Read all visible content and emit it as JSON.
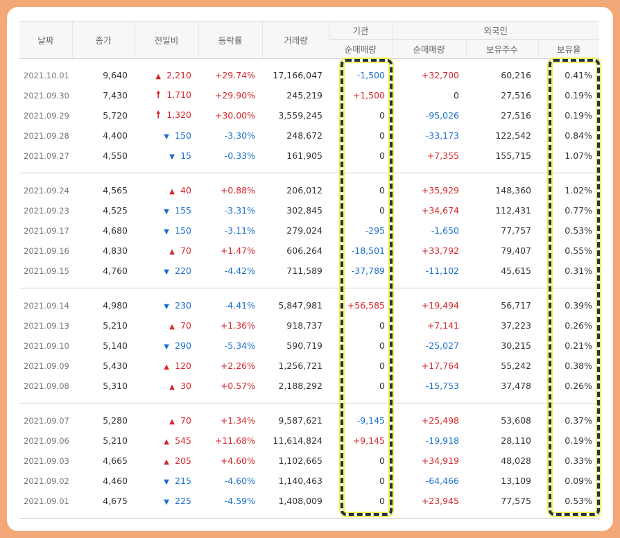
{
  "headers": {
    "date": "날짜",
    "close": "종가",
    "change": "전일비",
    "rate": "등락률",
    "volume": "거래량",
    "institution": "기관",
    "inst_net": "순매매량",
    "foreign": "외국인",
    "foreign_net": "순매매량",
    "foreign_shares": "보유주수",
    "foreign_ratio": "보유율"
  },
  "colors": {
    "up": "#d6262b",
    "down": "#1a6fd0",
    "highlight_border": "#213349",
    "highlight_glow": "#f6f34a"
  },
  "groups": [
    [
      {
        "date": "2021.10.01",
        "close": "9,640",
        "dir": "up",
        "arrow": "▲",
        "chg": "2,210",
        "rate": "+29.74%",
        "vol": "17,166,047",
        "inst": "-1,500",
        "frn": "+32,700",
        "shares": "60,216",
        "ratio": "0.41%"
      },
      {
        "date": "2021.09.30",
        "close": "7,430",
        "dir": "up",
        "arrow": "🠕",
        "chg": "1,710",
        "rate": "+29.90%",
        "vol": "245,219",
        "inst": "+1,500",
        "frn": "0",
        "shares": "27,516",
        "ratio": "0.19%"
      },
      {
        "date": "2021.09.29",
        "close": "5,720",
        "dir": "up",
        "arrow": "🠕",
        "chg": "1,320",
        "rate": "+30.00%",
        "vol": "3,559,245",
        "inst": "0",
        "frn": "-95,026",
        "shares": "27,516",
        "ratio": "0.19%"
      },
      {
        "date": "2021.09.28",
        "close": "4,400",
        "dir": "down",
        "arrow": "▼",
        "chg": "150",
        "rate": "-3.30%",
        "vol": "248,672",
        "inst": "0",
        "frn": "-33,173",
        "shares": "122,542",
        "ratio": "0.84%"
      },
      {
        "date": "2021.09.27",
        "close": "4,550",
        "dir": "down",
        "arrow": "▼",
        "chg": "15",
        "rate": "-0.33%",
        "vol": "161,905",
        "inst": "0",
        "frn": "+7,355",
        "shares": "155,715",
        "ratio": "1.07%"
      }
    ],
    [
      {
        "date": "2021.09.24",
        "close": "4,565",
        "dir": "up",
        "arrow": "▲",
        "chg": "40",
        "rate": "+0.88%",
        "vol": "206,012",
        "inst": "0",
        "frn": "+35,929",
        "shares": "148,360",
        "ratio": "1.02%"
      },
      {
        "date": "2021.09.23",
        "close": "4,525",
        "dir": "down",
        "arrow": "▼",
        "chg": "155",
        "rate": "-3.31%",
        "vol": "302,845",
        "inst": "0",
        "frn": "+34,674",
        "shares": "112,431",
        "ratio": "0.77%"
      },
      {
        "date": "2021.09.17",
        "close": "4,680",
        "dir": "down",
        "arrow": "▼",
        "chg": "150",
        "rate": "-3.11%",
        "vol": "279,024",
        "inst": "-295",
        "frn": "-1,650",
        "shares": "77,757",
        "ratio": "0.53%"
      },
      {
        "date": "2021.09.16",
        "close": "4,830",
        "dir": "up",
        "arrow": "▲",
        "chg": "70",
        "rate": "+1.47%",
        "vol": "606,264",
        "inst": "-18,501",
        "frn": "+33,792",
        "shares": "79,407",
        "ratio": "0.55%"
      },
      {
        "date": "2021.09.15",
        "close": "4,760",
        "dir": "down",
        "arrow": "▼",
        "chg": "220",
        "rate": "-4.42%",
        "vol": "711,589",
        "inst": "-37,789",
        "frn": "-11,102",
        "shares": "45,615",
        "ratio": "0.31%"
      }
    ],
    [
      {
        "date": "2021.09.14",
        "close": "4,980",
        "dir": "down",
        "arrow": "▼",
        "chg": "230",
        "rate": "-4.41%",
        "vol": "5,847,981",
        "inst": "+56,585",
        "frn": "+19,494",
        "shares": "56,717",
        "ratio": "0.39%"
      },
      {
        "date": "2021.09.13",
        "close": "5,210",
        "dir": "up",
        "arrow": "▲",
        "chg": "70",
        "rate": "+1.36%",
        "vol": "918,737",
        "inst": "0",
        "frn": "+7,141",
        "shares": "37,223",
        "ratio": "0.26%"
      },
      {
        "date": "2021.09.10",
        "close": "5,140",
        "dir": "down",
        "arrow": "▼",
        "chg": "290",
        "rate": "-5.34%",
        "vol": "590,719",
        "inst": "0",
        "frn": "-25,027",
        "shares": "30,215",
        "ratio": "0.21%"
      },
      {
        "date": "2021.09.09",
        "close": "5,430",
        "dir": "up",
        "arrow": "▲",
        "chg": "120",
        "rate": "+2.26%",
        "vol": "1,256,721",
        "inst": "0",
        "frn": "+17,764",
        "shares": "55,242",
        "ratio": "0.38%"
      },
      {
        "date": "2021.09.08",
        "close": "5,310",
        "dir": "up",
        "arrow": "▲",
        "chg": "30",
        "rate": "+0.57%",
        "vol": "2,188,292",
        "inst": "0",
        "frn": "-15,753",
        "shares": "37,478",
        "ratio": "0.26%"
      }
    ],
    [
      {
        "date": "2021.09.07",
        "close": "5,280",
        "dir": "up",
        "arrow": "▲",
        "chg": "70",
        "rate": "+1.34%",
        "vol": "9,587,621",
        "inst": "-9,145",
        "frn": "+25,498",
        "shares": "53,608",
        "ratio": "0.37%"
      },
      {
        "date": "2021.09.06",
        "close": "5,210",
        "dir": "up",
        "arrow": "▲",
        "chg": "545",
        "rate": "+11.68%",
        "vol": "11,614,824",
        "inst": "+9,145",
        "frn": "-19,918",
        "shares": "28,110",
        "ratio": "0.19%"
      },
      {
        "date": "2021.09.03",
        "close": "4,665",
        "dir": "up",
        "arrow": "▲",
        "chg": "205",
        "rate": "+4.60%",
        "vol": "1,102,665",
        "inst": "0",
        "frn": "+34,919",
        "shares": "48,028",
        "ratio": "0.33%"
      },
      {
        "date": "2021.09.02",
        "close": "4,460",
        "dir": "down",
        "arrow": "▼",
        "chg": "215",
        "rate": "-4.60%",
        "vol": "1,140,463",
        "inst": "0",
        "frn": "-64,466",
        "shares": "13,109",
        "ratio": "0.09%"
      },
      {
        "date": "2021.09.01",
        "close": "4,675",
        "dir": "down",
        "arrow": "▼",
        "chg": "225",
        "rate": "-4.59%",
        "vol": "1,408,009",
        "inst": "0",
        "frn": "+23,945",
        "shares": "77,575",
        "ratio": "0.53%"
      }
    ]
  ]
}
